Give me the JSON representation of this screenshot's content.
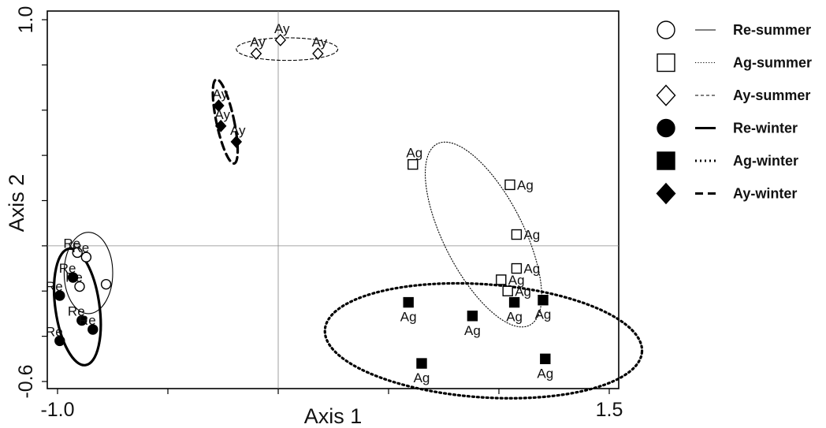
{
  "chart_data": {
    "type": "scatter",
    "xlabel": "Axis 1",
    "ylabel": "Axis 2",
    "xlim": [
      -1.0,
      1.5
    ],
    "ylim": [
      -0.6,
      1.0
    ],
    "x_ticks": [
      -1.0,
      1.5
    ],
    "y_ticks": [
      1.0,
      -0.6
    ],
    "x_tick_labels": [
      "-1.0",
      "1.5"
    ],
    "y_tick_labels": [
      "1.0",
      "-0.6"
    ],
    "zero_lines": true,
    "grid": false,
    "legend_position": "right",
    "series": [
      {
        "name": "Re-summer",
        "marker": "circle",
        "filled": false,
        "line": "solid-thin",
        "points": [
          {
            "x": -0.91,
            "y": -0.03,
            "label": "Re"
          },
          {
            "x": -0.87,
            "y": -0.05,
            "label": "Re"
          },
          {
            "x": -0.9,
            "y": -0.18,
            "label": "Re"
          },
          {
            "x": -0.78,
            "y": -0.17,
            "label": ""
          }
        ],
        "ellipse": {
          "cx": -0.86,
          "cy": -0.12,
          "rx": 0.11,
          "ry": 0.18,
          "angle": 0
        }
      },
      {
        "name": "Ag-summer",
        "marker": "square",
        "filled": false,
        "line": "dotted-thin",
        "points": [
          {
            "x": 0.61,
            "y": 0.36,
            "label": "Ag"
          },
          {
            "x": 1.05,
            "y": 0.27,
            "label": "Ag"
          },
          {
            "x": 1.08,
            "y": 0.05,
            "label": "Ag"
          },
          {
            "x": 1.08,
            "y": -0.1,
            "label": "Ag"
          },
          {
            "x": 1.01,
            "y": -0.15,
            "label": "Ag"
          },
          {
            "x": 1.04,
            "y": -0.2,
            "label": "Ag"
          }
        ],
        "ellipse": {
          "cx": 0.93,
          "cy": 0.05,
          "rx": 0.18,
          "ry": 0.45,
          "angle": -27
        }
      },
      {
        "name": "Ay-summer",
        "marker": "diamond",
        "filled": false,
        "line": "dashed-thin",
        "points": [
          {
            "x": -0.1,
            "y": 0.85,
            "label": "Ay"
          },
          {
            "x": 0.01,
            "y": 0.91,
            "label": "Ay"
          },
          {
            "x": 0.18,
            "y": 0.85,
            "label": "Ay"
          }
        ],
        "ellipse": {
          "cx": 0.04,
          "cy": 0.87,
          "rx": 0.23,
          "ry": 0.05,
          "angle": 0
        }
      },
      {
        "name": "Re-winter",
        "marker": "circle",
        "filled": true,
        "line": "solid-thick",
        "points": [
          {
            "x": -0.93,
            "y": -0.14,
            "label": "Re"
          },
          {
            "x": -0.99,
            "y": -0.22,
            "label": "Re"
          },
          {
            "x": -0.89,
            "y": -0.33,
            "label": "Re"
          },
          {
            "x": -0.84,
            "y": -0.37,
            "label": "Re"
          },
          {
            "x": -0.99,
            "y": -0.42,
            "label": "Re"
          }
        ],
        "ellipse": {
          "cx": -0.91,
          "cy": -0.27,
          "rx": 0.1,
          "ry": 0.26,
          "angle": -8
        }
      },
      {
        "name": "Ag-winter",
        "marker": "square",
        "filled": true,
        "line": "dotted-thick",
        "points": [
          {
            "x": 0.59,
            "y": -0.25,
            "label": "Ag"
          },
          {
            "x": 0.88,
            "y": -0.31,
            "label": "Ag"
          },
          {
            "x": 1.07,
            "y": -0.25,
            "label": "Ag"
          },
          {
            "x": 1.2,
            "y": -0.24,
            "label": "Ag"
          },
          {
            "x": 0.65,
            "y": -0.52,
            "label": "Ag"
          },
          {
            "x": 1.21,
            "y": -0.5,
            "label": "Ag"
          }
        ],
        "ellipse": {
          "cx": 0.93,
          "cy": -0.42,
          "rx": 0.72,
          "ry": 0.25,
          "angle": 4
        }
      },
      {
        "name": "Ay-winter",
        "marker": "diamond",
        "filled": true,
        "line": "dashed-thick",
        "points": [
          {
            "x": -0.27,
            "y": 0.62,
            "label": "Ay"
          },
          {
            "x": -0.26,
            "y": 0.53,
            "label": "Ay"
          },
          {
            "x": -0.19,
            "y": 0.46,
            "label": "Ay"
          }
        ],
        "ellipse": {
          "cx": -0.24,
          "cy": 0.55,
          "rx": 0.04,
          "ry": 0.19,
          "angle": -12
        }
      }
    ]
  }
}
